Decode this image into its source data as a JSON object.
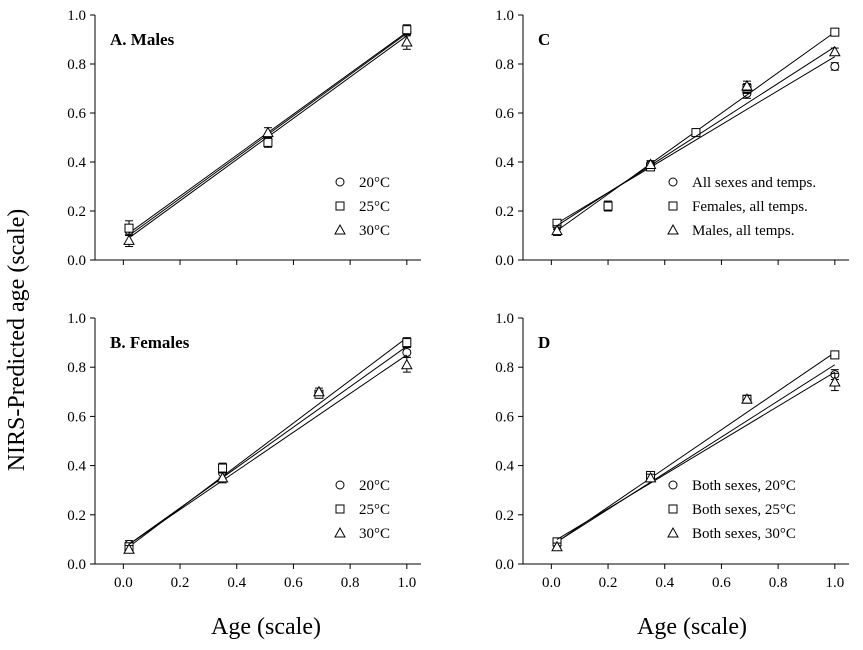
{
  "figure": {
    "ylabel": "NIRS-Predicted age (scale)",
    "xlabel_left": "Age (scale)",
    "xlabel_right": "Age (scale)"
  },
  "chart_data": [
    {
      "type": "scatter",
      "panel": "A",
      "title": "A. Males",
      "xlabel": "Age (scale)",
      "ylabel": "NIRS-Predicted age (scale)",
      "xlim": [
        -0.1,
        1.05
      ],
      "ylim": [
        0,
        1.0
      ],
      "xticks": [],
      "yticks": [
        "0.0",
        "0.2",
        "0.4",
        "0.6",
        "0.8",
        "1.0"
      ],
      "legend_position": "bottom-right",
      "series": [
        {
          "name": "20°C",
          "marker": "circle",
          "x": [
            0.02,
            0.51,
            1.0
          ],
          "y": [
            0.12,
            0.49,
            0.93
          ],
          "err": [
            0.02,
            0.015,
            0.015
          ],
          "fit": [
            0.1,
            0.925
          ]
        },
        {
          "name": "25°C",
          "marker": "square",
          "x": [
            0.02,
            0.51,
            1.0
          ],
          "y": [
            0.13,
            0.48,
            0.94
          ],
          "err": [
            0.03,
            0.02,
            0.02
          ],
          "fit": [
            0.11,
            0.93
          ]
        },
        {
          "name": "30°C",
          "marker": "triangle",
          "x": [
            0.02,
            0.51,
            1.0
          ],
          "y": [
            0.08,
            0.52,
            0.89
          ],
          "err": [
            0.025,
            0.02,
            0.03
          ],
          "fit": [
            0.09,
            0.915
          ]
        }
      ]
    },
    {
      "type": "scatter",
      "panel": "B",
      "title": "B. Females",
      "xlabel": "Age (scale)",
      "ylabel": "NIRS-Predicted age (scale)",
      "xlim": [
        -0.1,
        1.05
      ],
      "ylim": [
        0,
        1.0
      ],
      "xticks": [
        "0.0",
        "0.2",
        "0.4",
        "0.6",
        "0.8",
        "1.0"
      ],
      "yticks": [
        "0.0",
        "0.2",
        "0.4",
        "0.6",
        "0.8",
        "1.0"
      ],
      "legend_position": "bottom-right",
      "series": [
        {
          "name": "20°C",
          "marker": "circle",
          "x": [
            0.02,
            0.35,
            0.69,
            1.0
          ],
          "y": [
            0.08,
            0.37,
            0.69,
            0.86
          ],
          "err": [
            0.015,
            0.02,
            0.015,
            0.02
          ],
          "fit": [
            0.08,
            0.885
          ]
        },
        {
          "name": "25°C",
          "marker": "square",
          "x": [
            0.02,
            0.35,
            0.69,
            1.0
          ],
          "y": [
            0.07,
            0.39,
            0.69,
            0.9
          ],
          "err": [
            0.015,
            0.02,
            0.015,
            0.02
          ],
          "fit": [
            0.07,
            0.92
          ]
        },
        {
          "name": "30°C",
          "marker": "triangle",
          "x": [
            0.02,
            0.35,
            0.69,
            1.0
          ],
          "y": [
            0.06,
            0.35,
            0.7,
            0.81
          ],
          "err": [
            0.015,
            0.02,
            0.015,
            0.03
          ],
          "fit": [
            0.08,
            0.85
          ]
        }
      ]
    },
    {
      "type": "scatter",
      "panel": "C",
      "title": "C",
      "xlabel": "Age (scale)",
      "ylabel": "NIRS-Predicted age (scale)",
      "xlim": [
        -0.1,
        1.05
      ],
      "ylim": [
        0,
        1.0
      ],
      "xticks": [],
      "yticks": [
        "0.0",
        "0.2",
        "0.4",
        "0.6",
        "0.8",
        "1.0"
      ],
      "legend_position": "bottom-right",
      "series": [
        {
          "name": "All sexes and temps.",
          "marker": "circle",
          "x": [
            0.02,
            0.2,
            0.35,
            0.51,
            0.69,
            1.0
          ],
          "y": [
            0.14,
            0.22,
            0.39,
            0.52,
            0.68,
            0.79
          ],
          "err": [
            0.015,
            0.02,
            0.015,
            0.01,
            0.02,
            0.015
          ],
          "fit": [
            0.15,
            0.83
          ]
        },
        {
          "name": "Females, all temps.",
          "marker": "square",
          "x": [
            0.02,
            0.2,
            0.35,
            0.51,
            0.69,
            1.0
          ],
          "y": [
            0.15,
            0.22,
            0.38,
            0.52,
            0.7,
            0.93
          ],
          "err": [
            0.015,
            0.02,
            0.015,
            0.01,
            0.02,
            0.015
          ],
          "fit": [
            0.12,
            0.93
          ]
        },
        {
          "name": "Males, all temps.",
          "marker": "triangle",
          "x": [
            0.02,
            0.35,
            0.69,
            1.0
          ],
          "y": [
            0.12,
            0.39,
            0.71,
            0.85
          ],
          "err": [
            0.02,
            0.015,
            0.02,
            0.015
          ],
          "fit": [
            0.14,
            0.87
          ]
        }
      ]
    },
    {
      "type": "scatter",
      "panel": "D",
      "title": "D",
      "xlabel": "Age (scale)",
      "ylabel": "NIRS-Predicted age (scale)",
      "xlim": [
        -0.1,
        1.05
      ],
      "ylim": [
        0,
        1.0
      ],
      "xticks": [
        "0.0",
        "0.2",
        "0.4",
        "0.6",
        "0.8",
        "1.0"
      ],
      "yticks": [
        "0.0",
        "0.2",
        "0.4",
        "0.6",
        "0.8",
        "1.0"
      ],
      "legend_position": "bottom-right",
      "series": [
        {
          "name": "Both sexes, 20°C",
          "marker": "circle",
          "x": [
            0.02,
            0.35,
            0.69,
            1.0
          ],
          "y": [
            0.08,
            0.36,
            0.67,
            0.77
          ],
          "err": [
            0.015,
            0.015,
            0.015,
            0.02
          ],
          "fit": [
            0.09,
            0.81
          ]
        },
        {
          "name": "Both sexes, 25°C",
          "marker": "square",
          "x": [
            0.02,
            0.35,
            0.69,
            1.0
          ],
          "y": [
            0.09,
            0.36,
            0.67,
            0.85
          ],
          "err": [
            0.015,
            0.015,
            0.015,
            0.015
          ],
          "fit": [
            0.09,
            0.86
          ]
        },
        {
          "name": "Both sexes, 30°C",
          "marker": "triangle",
          "x": [
            0.02,
            0.35,
            0.69,
            1.0
          ],
          "y": [
            0.07,
            0.35,
            0.67,
            0.74
          ],
          "err": [
            0.015,
            0.015,
            0.015,
            0.035
          ],
          "fit": [
            0.1,
            0.78
          ]
        }
      ]
    }
  ]
}
